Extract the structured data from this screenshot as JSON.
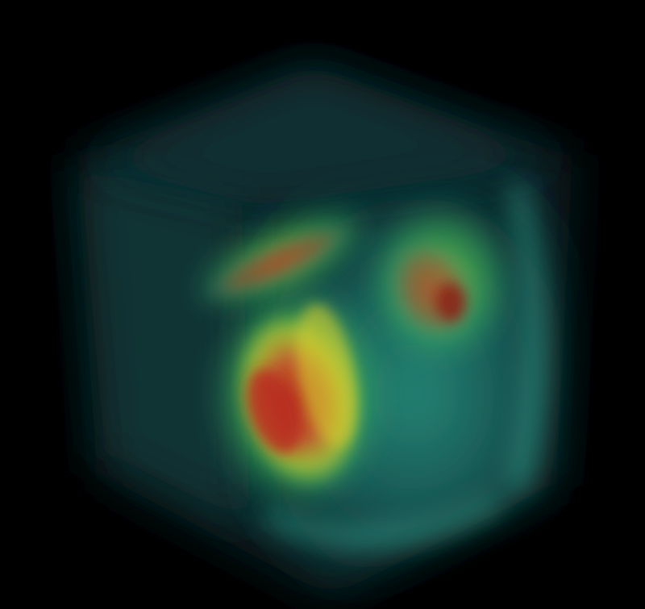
{
  "scene": {
    "background_color": "#000000",
    "subject": "volume-rendered-cube",
    "colormap": [
      "#0b2a30",
      "#1f6f6a",
      "#2fae8a",
      "#6fd24a",
      "#d8d02a",
      "#d0502a",
      "#b8281e"
    ],
    "colors": {
      "shell_dark": "#06181c",
      "shell_teal": "#1c6f6a",
      "face_teal": "#2a9c86",
      "edge_glow": "#3fb8a0",
      "green_halo": "#5ed24a",
      "yellow_band": "#d6cc2e",
      "red_core": "#c23a22",
      "dark_red_core": "#8e1a16"
    }
  }
}
